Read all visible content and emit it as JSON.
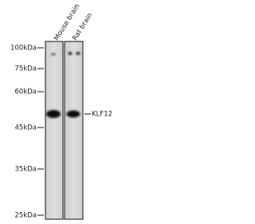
{
  "lanes": [
    "Mouse brain",
    "Rat brain"
  ],
  "markers": [
    "100kDa",
    "75kDa",
    "60kDa",
    "45kDa",
    "35kDa",
    "25kDa"
  ],
  "band_label": "KLF12"
}
